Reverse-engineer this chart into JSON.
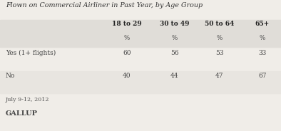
{
  "title": "Flown on Commercial Airliner in Past Year, by Age Group",
  "col_headers": [
    "18 to 29",
    "30 to 49",
    "50 to 64",
    "65+"
  ],
  "sub_header": [
    "%",
    "%",
    "%",
    "%"
  ],
  "rows": [
    {
      "label": "Yes (1+ flights)",
      "values": [
        "60",
        "56",
        "53",
        "33"
      ]
    },
    {
      "label": "No",
      "values": [
        "40",
        "44",
        "47",
        "67"
      ]
    }
  ],
  "footer_date": "July 9-12, 2012",
  "footer_brand": "GALLUP",
  "bg_color": "#f0ede8",
  "header_bg": "#e0ddd8",
  "row0_bg": "#f0ede8",
  "row1_bg": "#e8e5e0",
  "title_color": "#333333",
  "header_color": "#222222",
  "cell_color": "#444444",
  "footer_color": "#555555",
  "brand_color": "#444444"
}
